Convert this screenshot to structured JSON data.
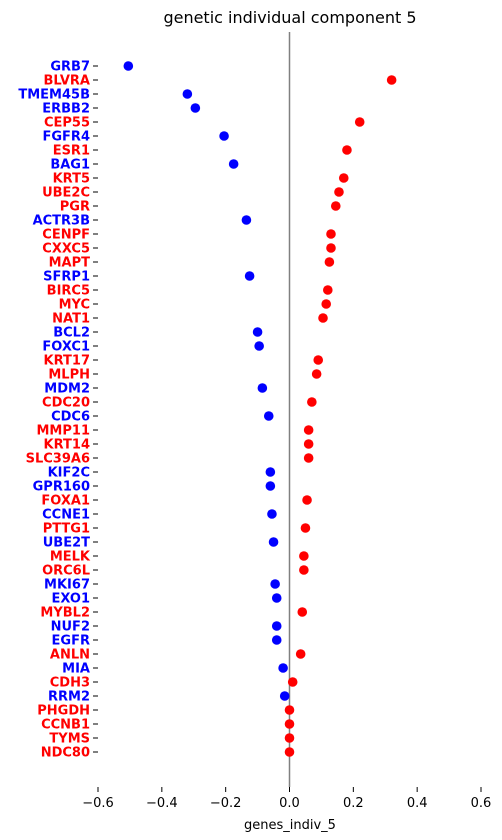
{
  "chart_data": {
    "type": "scatter",
    "title": "genetic individual component 5",
    "xlabel": "genes_indiv_5",
    "ylabel": "",
    "xlim": [
      -0.6,
      0.6
    ],
    "xticks": [
      -0.6,
      -0.4,
      -0.2,
      0.0,
      0.2,
      0.4,
      0.6
    ],
    "xtick_labels": [
      "−0.6",
      "−0.4",
      "−0.2",
      "0.0",
      "0.2",
      "0.4",
      "0.6"
    ],
    "reference_line_x": 0.0,
    "grid": false,
    "colors": {
      "negative": "#0000ff",
      "positive": "#ff0000",
      "reference_line": "#808080"
    },
    "categories": [
      "GRB7",
      "BLVRA",
      "TMEM45B",
      "ERBB2",
      "CEP55",
      "FGFR4",
      "ESR1",
      "BAG1",
      "KRT5",
      "UBE2C",
      "PGR",
      "ACTR3B",
      "CENPF",
      "CXXC5",
      "MAPT",
      "SFRP1",
      "BIRC5",
      "MYC",
      "NAT1",
      "BCL2",
      "FOXC1",
      "KRT17",
      "MLPH",
      "MDM2",
      "CDC20",
      "CDC6",
      "MMP11",
      "KRT14",
      "SLC39A6",
      "KIF2C",
      "GPR160",
      "FOXA1",
      "CCNE1",
      "PTTG1",
      "UBE2T",
      "MELK",
      "ORC6L",
      "MKI67",
      "EXO1",
      "MYBL2",
      "NUF2",
      "EGFR",
      "ANLN",
      "MIA",
      "CDH3",
      "RRM2",
      "PHGDH",
      "CCNB1",
      "TYMS",
      "NDC80"
    ],
    "values": [
      -0.505,
      0.32,
      -0.32,
      -0.295,
      0.22,
      -0.205,
      0.18,
      -0.175,
      0.17,
      0.155,
      0.145,
      -0.135,
      0.13,
      0.13,
      0.125,
      -0.125,
      0.12,
      0.115,
      0.105,
      -0.1,
      -0.095,
      0.09,
      0.085,
      -0.085,
      0.07,
      -0.065,
      0.06,
      0.06,
      0.06,
      -0.06,
      -0.06,
      0.055,
      -0.055,
      0.05,
      -0.05,
      0.045,
      0.045,
      -0.045,
      -0.04,
      0.04,
      -0.04,
      -0.04,
      0.035,
      -0.02,
      0.01,
      -0.015,
      0.0,
      0.0,
      0.0,
      0.0
    ]
  }
}
